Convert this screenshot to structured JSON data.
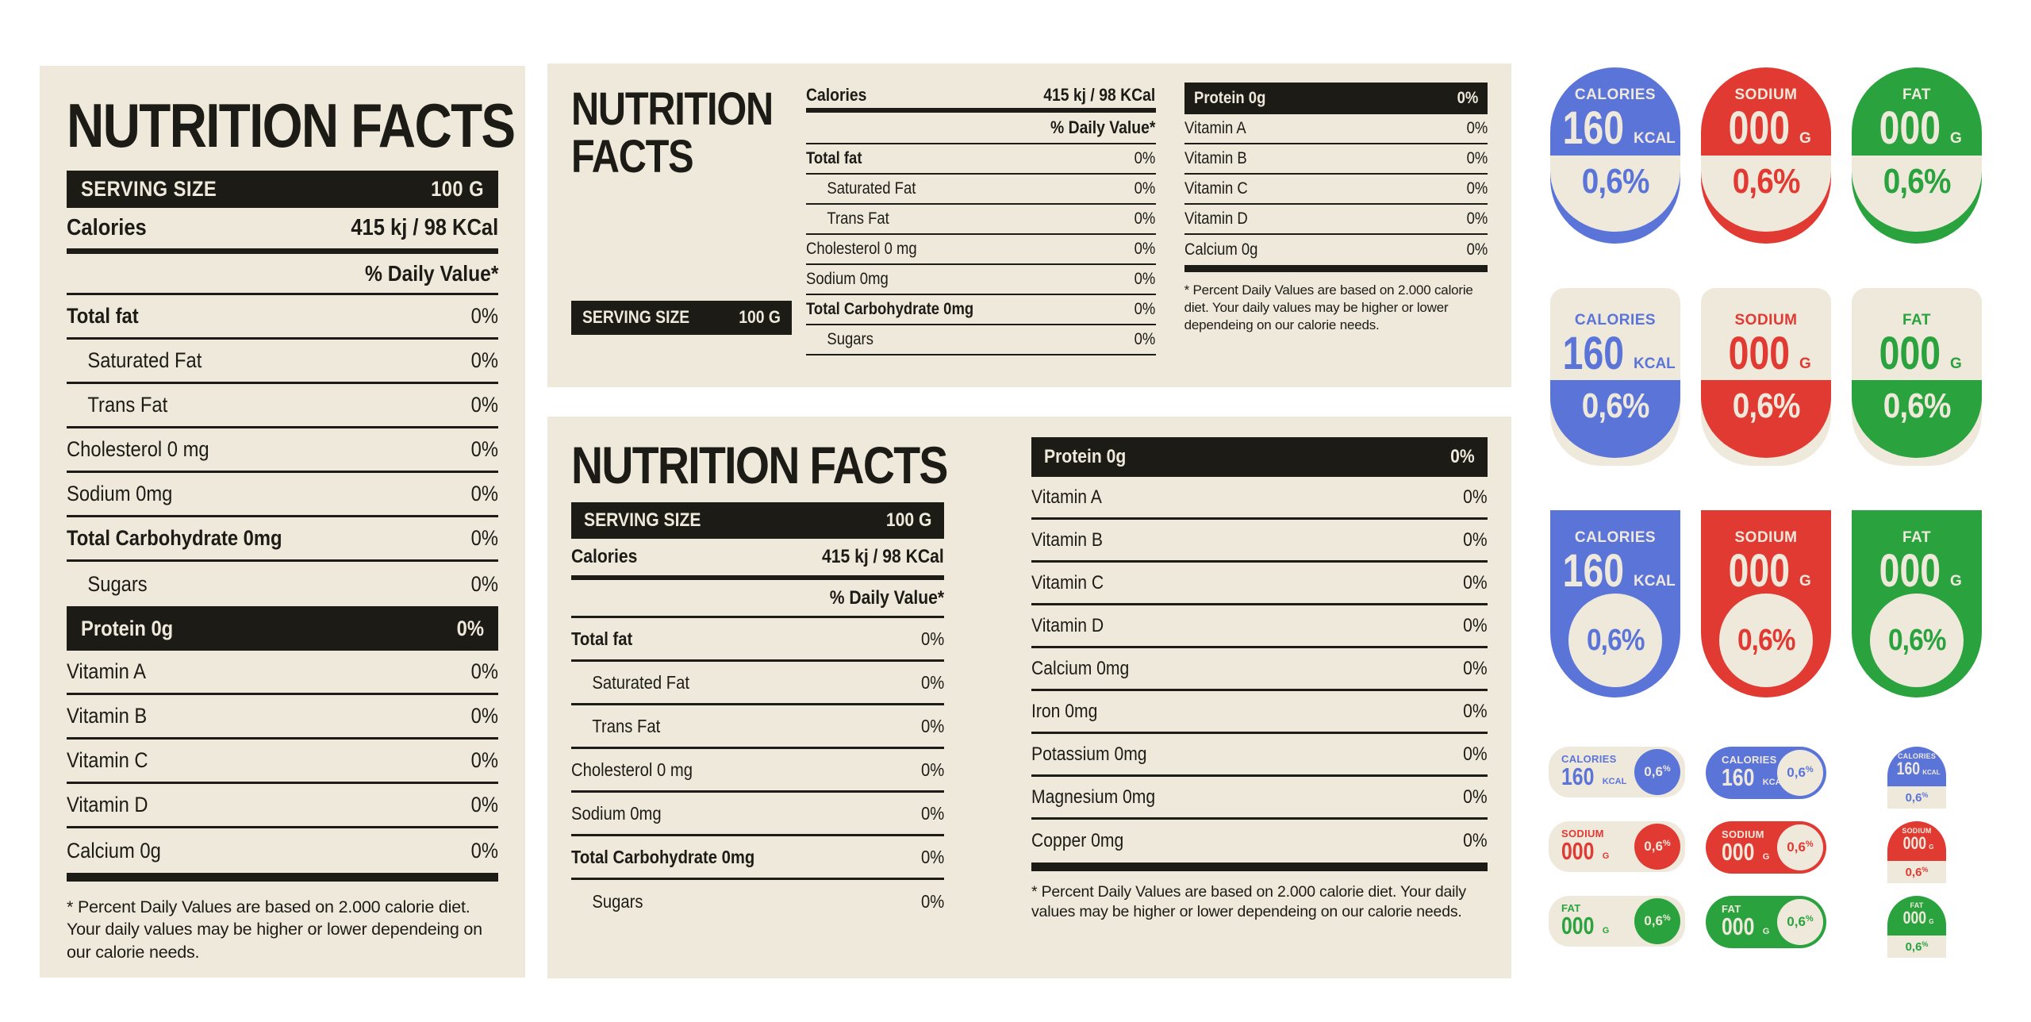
{
  "colors": {
    "background": "#ffffff",
    "paper": "#efe9dc",
    "ink": "#1d1b16",
    "blue": "#5b74d8",
    "red": "#e03a33",
    "green": "#2aa33e"
  },
  "shared": {
    "title": "NUTRITION FACTS",
    "title_line1": "NUTRITION",
    "title_line2": "FACTS",
    "serving_label": "SERVING SIZE",
    "serving_value": "100 G",
    "calories_label": "Calories",
    "calories_value": "415 kj / 98 KCal",
    "daily_value_header": "% Daily Value*",
    "nutrient_rows": [
      {
        "label": "Total fat",
        "value": "0%"
      },
      {
        "label": "Saturated Fat",
        "value": "0%"
      },
      {
        "label": "Trans Fat",
        "value": "0%"
      },
      {
        "label": "Cholesterol 0 mg",
        "value": "0%"
      },
      {
        "label": "Sodium 0mg",
        "value": "0%"
      },
      {
        "label": "Total Carbohydrate 0mg",
        "value": "0%"
      },
      {
        "label": "Sugars",
        "value": "0%"
      }
    ],
    "protein_row": {
      "label": "Protein 0g",
      "value": "0%"
    },
    "vitamin_rows_basic": [
      {
        "label": "Vitamin A",
        "value": "0%"
      },
      {
        "label": "Vitamin B",
        "value": "0%"
      },
      {
        "label": "Vitamin C",
        "value": "0%"
      },
      {
        "label": "Vitamin D",
        "value": "0%"
      },
      {
        "label": "Calcium 0g",
        "value": "0%"
      }
    ],
    "vitamin_rows_extended": [
      {
        "label": "Vitamin A",
        "value": "0%"
      },
      {
        "label": "Vitamin B",
        "value": "0%"
      },
      {
        "label": "Vitamin C",
        "value": "0%"
      },
      {
        "label": "Vitamin D",
        "value": "0%"
      },
      {
        "label": "Calcium 0mg",
        "value": "0%"
      },
      {
        "label": "Iron 0mg",
        "value": "0%"
      },
      {
        "label": "Potassium 0mg",
        "value": "0%"
      },
      {
        "label": "Magnesium 0mg",
        "value": "0%"
      },
      {
        "label": "Copper 0mg",
        "value": "0%"
      }
    ],
    "footnote": "* Percent Daily Values are based on 2.000 calorie diet. Your daily values may be higher or lower dependeing on our calorie needs."
  },
  "badges": {
    "percent_value": "0,6%",
    "percent_base": "0,6",
    "percent_sup": "%",
    "columns": [
      {
        "name": "calories",
        "label": "CALORIES",
        "number": "160",
        "unit": "KCAL",
        "color": "#5b74d8"
      },
      {
        "name": "sodium",
        "label": "SODIUM",
        "number": "000",
        "unit": "G",
        "color": "#e03a33"
      },
      {
        "name": "fat",
        "label": "FAT",
        "number": "000",
        "unit": "G",
        "color": "#2aa33e"
      }
    ]
  }
}
